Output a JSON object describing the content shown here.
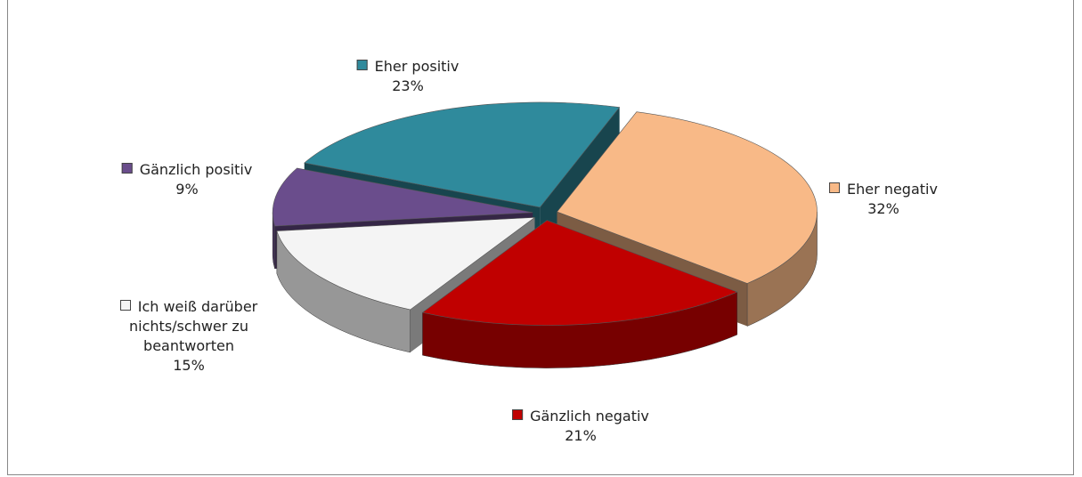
{
  "chart_data": {
    "type": "pie3d",
    "categories": [
      "Eher positiv",
      "Eher negativ",
      "Gänzlich negativ",
      "Ich weiß darüber nichts/schwer zu beantworten",
      "Gänzlich positiv"
    ],
    "values": [
      23,
      32,
      21,
      15,
      9
    ],
    "value_labels": [
      "23%",
      "32%",
      "21%",
      "15%",
      "9%"
    ],
    "colors": [
      "#2f8a9c",
      "#f8b987",
      "#c00000",
      "#f4f4f4",
      "#6a4d8c"
    ]
  }
}
